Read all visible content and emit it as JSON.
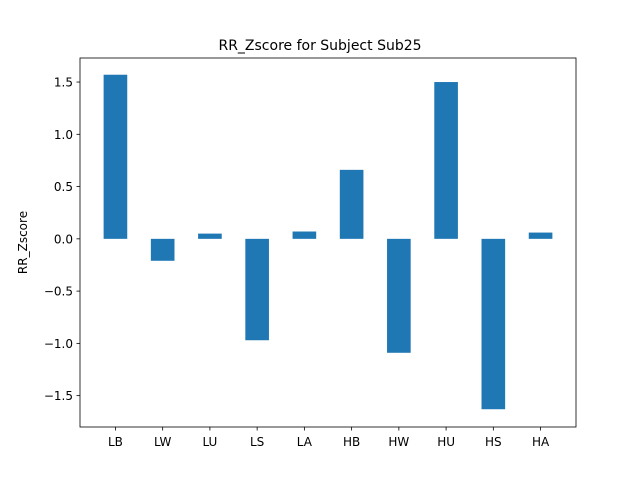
{
  "chart_data": {
    "type": "bar",
    "title": "RR_Zscore for Subject Sub25",
    "xlabel": "",
    "ylabel": "RR_Zscore",
    "categories": [
      "LB",
      "LW",
      "LU",
      "LS",
      "LA",
      "HB",
      "HW",
      "HU",
      "HS",
      "HA"
    ],
    "values": [
      1.57,
      -0.21,
      0.05,
      -0.97,
      0.07,
      0.66,
      -1.09,
      1.5,
      -1.63,
      0.06
    ],
    "ylim": [
      -1.8,
      1.73
    ],
    "yticks": [
      -1.5,
      -1.0,
      -0.5,
      0.0,
      0.5,
      1.0,
      1.5
    ],
    "ytick_labels": [
      "−1.5",
      "−1.0",
      "−0.5",
      "0.0",
      "0.5",
      "1.0",
      "1.5"
    ],
    "grid": false,
    "bar_color": "#1f77b4"
  }
}
